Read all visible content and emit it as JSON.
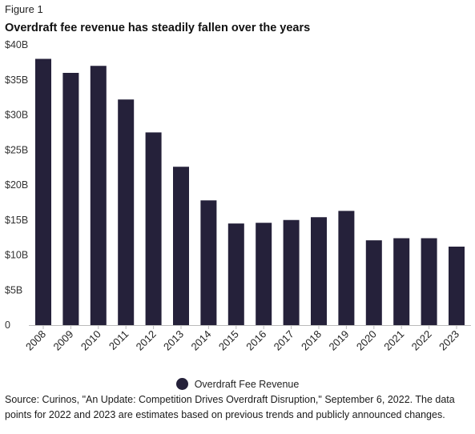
{
  "figure_label": "Figure 1",
  "chart_data": {
    "type": "bar",
    "title": "Overdraft fee revenue has steadily fallen over the years",
    "categories": [
      "2008",
      "2009",
      "2010",
      "2011",
      "2012",
      "2013",
      "2014",
      "2015",
      "2016",
      "2017",
      "2018",
      "2019",
      "2020",
      "2021",
      "2022",
      "2023"
    ],
    "series": [
      {
        "name": "Overdraft Fee Revenue",
        "values": [
          38.0,
          36.0,
          37.0,
          32.2,
          27.5,
          22.6,
          17.8,
          14.5,
          14.6,
          15.0,
          15.4,
          16.3,
          12.1,
          12.4,
          12.4,
          11.2
        ]
      }
    ],
    "ylim": [
      0,
      40
    ],
    "yticks": [
      0,
      5,
      10,
      15,
      20,
      25,
      30,
      35,
      40
    ],
    "ytick_labels": [
      "0",
      "$5B",
      "$10B",
      "$15B",
      "$20B",
      "$25B",
      "$30B",
      "$35B",
      "$40B"
    ],
    "xlabel": "",
    "ylabel": "",
    "grid": false,
    "legend_position": "bottom-center",
    "bar_color": "#25213a"
  },
  "source_text": "Source: Curinos, \"An Update: Competition Drives Overdraft Disruption,\" September 6, 2022. The data points for 2022 and 2023 are estimates based on previous trends and publicly announced changes."
}
